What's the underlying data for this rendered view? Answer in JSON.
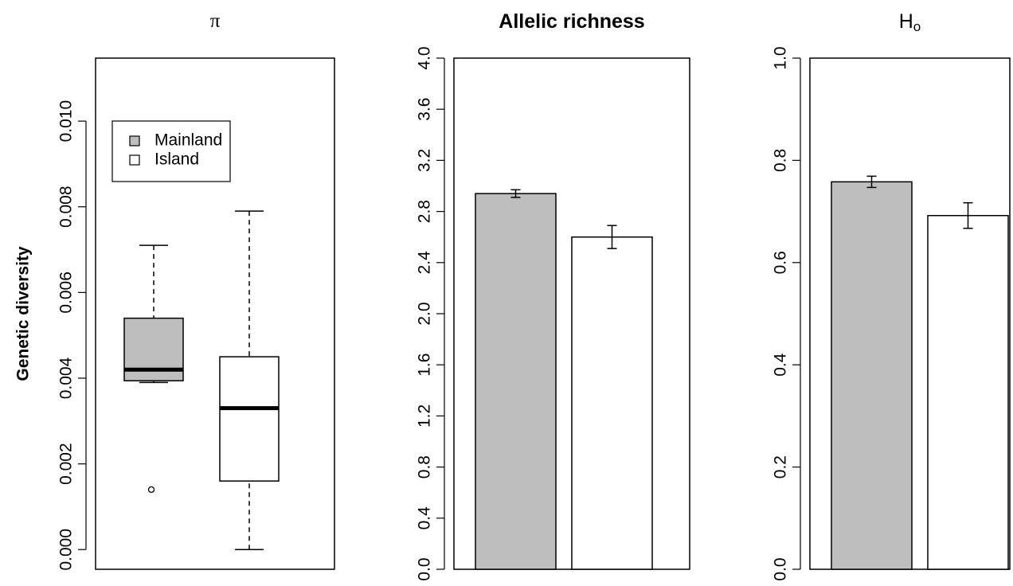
{
  "chart_data": [
    {
      "type": "box",
      "title": "π",
      "ylabel": "Genetic diversity",
      "ylim": [
        -0.00046,
        0.01147
      ],
      "yticks": [
        {
          "value": 0,
          "label": "0.000"
        },
        {
          "value": 0.002,
          "label": "0.002"
        },
        {
          "value": 0.004,
          "label": "0.004"
        },
        {
          "value": 0.006,
          "label": "0.006"
        },
        {
          "value": 0.008,
          "label": "0.008"
        },
        {
          "value": 0.01,
          "label": "0.010"
        }
      ],
      "legend": "top-left",
      "series": [
        {
          "name": "Mainland",
          "color": "#bebebe",
          "whislo": 0.0039,
          "q1": 0.00394,
          "med": 0.0042,
          "q3": 0.0054,
          "whishi": 0.0071,
          "fliers": [
            0.0014
          ]
        },
        {
          "name": "Island",
          "color": "#ffffff",
          "whislo": 0,
          "q1": 0.0016,
          "med": 0.0033,
          "q3": 0.0045,
          "whishi": 0.0079,
          "fliers": []
        }
      ]
    },
    {
      "type": "bar",
      "title": "Allelic richness",
      "ylim": [
        0,
        4.0
      ],
      "yticks": [
        {
          "value": 0,
          "label": "0.0"
        },
        0.4,
        0.8,
        1.2,
        1.6,
        {
          "value": 2,
          "label": "2.0"
        },
        2.4,
        2.8,
        3.2,
        3.6,
        {
          "value": 4,
          "label": "4.0"
        }
      ],
      "series": [
        {
          "values": [
            2.94,
            2.6
          ],
          "errors": [
            0.03,
            0.09
          ],
          "colors": [
            "#bebebe",
            "#ffffff"
          ]
        }
      ]
    },
    {
      "type": "bar",
      "title": "H",
      "title_subscript": "o",
      "ylim": [
        0,
        1.0
      ],
      "yticks": [
        {
          "value": 0,
          "label": "0.0"
        },
        0.2,
        0.4,
        0.6,
        0.8,
        {
          "value": 1,
          "label": "1.0"
        }
      ],
      "series": [
        {
          "values": [
            0.758,
            0.692
          ],
          "errors": [
            0.011,
            0.025
          ],
          "colors": [
            "#bebebe",
            "#ffffff"
          ]
        }
      ]
    }
  ]
}
